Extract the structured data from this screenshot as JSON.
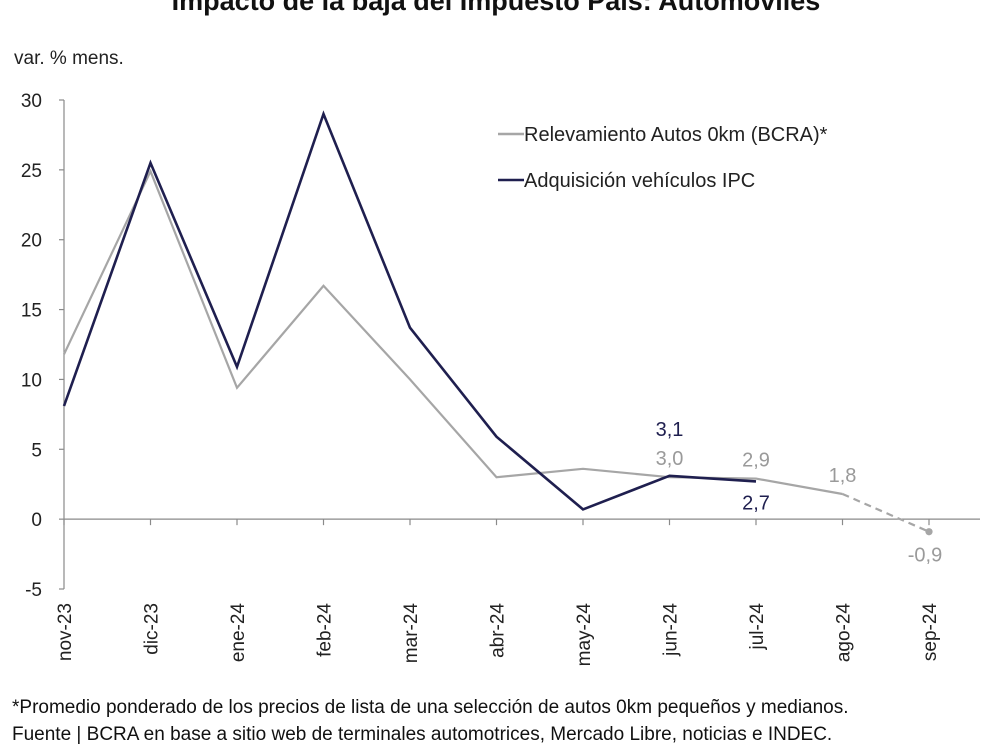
{
  "chart_data": {
    "type": "line",
    "title": "Impacto de la baja del Impuesto País: Automóviles",
    "ylabel": "var. % mens.",
    "xlabel": "",
    "ylim": [
      -5,
      30
    ],
    "yticks": [
      -5,
      0,
      5,
      10,
      15,
      20,
      25,
      30
    ],
    "ytick_labels": [
      "-5",
      "0",
      "5",
      "10",
      "15",
      "20",
      "25",
      "30"
    ],
    "grid": false,
    "legend_position": "top-right",
    "categories": [
      "nov-23",
      "dic-23",
      "ene-24",
      "feb-24",
      "mar-24",
      "abr-24",
      "may-24",
      "jun-24",
      "jul-24",
      "ago-24",
      "sep-24"
    ],
    "series": [
      {
        "name": "Relevamiento Autos 0km (BCRA)*",
        "color": "#a6a6a6",
        "values": [
          11.8,
          24.9,
          9.4,
          16.7,
          10.0,
          3.0,
          3.6,
          3.0,
          2.9,
          1.8,
          -0.9
        ],
        "dashed_from_index": 9
      },
      {
        "name": "Adquisición vehículos IPC",
        "color": "#1f1f4f",
        "values": [
          8.1,
          25.5,
          10.9,
          29.0,
          13.7,
          5.9,
          0.7,
          3.1,
          2.7,
          null,
          null
        ]
      }
    ],
    "annotations": [
      {
        "series": 1,
        "index": 7,
        "text": "3,1",
        "position": "above"
      },
      {
        "series": 0,
        "index": 7,
        "text": "3,0",
        "position": "above"
      },
      {
        "series": 0,
        "index": 8,
        "text": "2,9",
        "position": "above"
      },
      {
        "series": 1,
        "index": 8,
        "text": "2,7",
        "position": "below"
      },
      {
        "series": 0,
        "index": 9,
        "text": "1,8",
        "position": "above"
      },
      {
        "series": 0,
        "index": 10,
        "text": "-0,9",
        "position": "below"
      }
    ]
  },
  "footnotes": [
    "*Promedio ponderado de los precios de lista de una selección de autos 0km pequeños y medianos.",
    "Fuente | BCRA en base a sitio web de terminales automotrices, Mercado Libre, noticias e INDEC."
  ]
}
